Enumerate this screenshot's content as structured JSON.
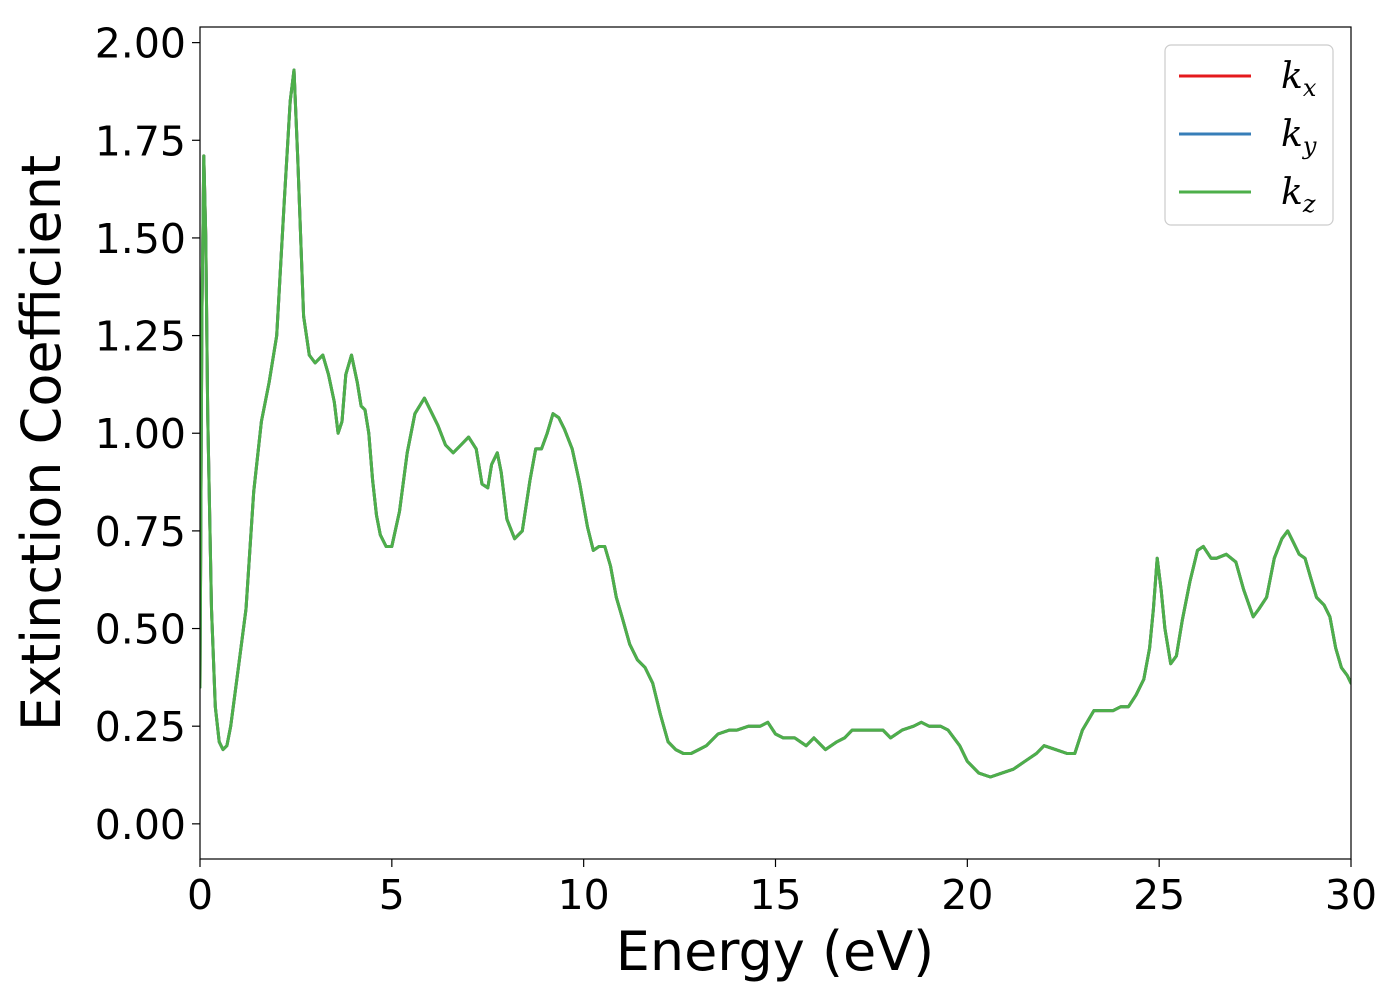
{
  "chart_data": {
    "type": "line",
    "xlabel": "Energy (eV)",
    "ylabel": "Extinction Coefficient",
    "xlim": [
      0,
      30
    ],
    "ylim": [
      -0.09,
      2.04
    ],
    "xticks": [
      0,
      5,
      10,
      15,
      20,
      25,
      30
    ],
    "xtick_labels": [
      "0",
      "5",
      "10",
      "15",
      "20",
      "25",
      "30"
    ],
    "yticks": [
      0,
      0.25,
      0.5,
      0.75,
      1.0,
      1.25,
      1.5,
      1.75,
      2.0
    ],
    "ytick_labels": [
      "0.00",
      "0.25",
      "0.50",
      "0.75",
      "1.00",
      "1.25",
      "1.50",
      "1.75",
      "2.00"
    ],
    "grid": false,
    "legend_position": "top-right",
    "series": [
      {
        "name": "k_x",
        "label_base": "k",
        "label_sub": "x",
        "color": "#e41a1c",
        "x": [
          0,
          0.05,
          0.1,
          0.15,
          0.2,
          0.3,
          0.4,
          0.5,
          0.6,
          0.7,
          0.8,
          1.0,
          1.2,
          1.4,
          1.6,
          1.8,
          2.0,
          2.2,
          2.35,
          2.45,
          2.55,
          2.7,
          2.85,
          3.0,
          3.2,
          3.35,
          3.5,
          3.6,
          3.7,
          3.8,
          3.95,
          4.1,
          4.2,
          4.3,
          4.4,
          4.5,
          4.6,
          4.7,
          4.85,
          5.0,
          5.2,
          5.4,
          5.6,
          5.85,
          6.0,
          6.2,
          6.4,
          6.6,
          6.8,
          7.0,
          7.2,
          7.35,
          7.5,
          7.6,
          7.75,
          7.85,
          8.0,
          8.2,
          8.4,
          8.6,
          8.75,
          8.9,
          9.05,
          9.2,
          9.35,
          9.5,
          9.7,
          9.9,
          10.1,
          10.25,
          10.4,
          10.55,
          10.7,
          10.85,
          11.0,
          11.2,
          11.4,
          11.6,
          11.8,
          12.0,
          12.2,
          12.4,
          12.6,
          12.8,
          13.0,
          13.2,
          13.5,
          13.8,
          14.0,
          14.3,
          14.6,
          14.8,
          15.0,
          15.2,
          15.5,
          15.8,
          16.0,
          16.3,
          16.6,
          16.8,
          17.0,
          17.3,
          17.6,
          17.8,
          18.0,
          18.3,
          18.6,
          18.8,
          19.0,
          19.3,
          19.5,
          19.8,
          20.0,
          20.3,
          20.6,
          20.9,
          21.2,
          21.5,
          21.8,
          22.0,
          22.3,
          22.6,
          22.8,
          23.0,
          23.3,
          23.6,
          23.8,
          24.0,
          24.2,
          24.4,
          24.6,
          24.75,
          24.85,
          24.95,
          25.05,
          25.15,
          25.3,
          25.45,
          25.6,
          25.8,
          26.0,
          26.15,
          26.35,
          26.5,
          26.75,
          27.0,
          27.2,
          27.45,
          27.6,
          27.8,
          28.0,
          28.2,
          28.35,
          28.5,
          28.65,
          28.8,
          28.95,
          29.1,
          29.3,
          29.45,
          29.6,
          29.75,
          29.9,
          30.0
        ],
        "y": [
          0.35,
          1.3,
          1.71,
          1.5,
          1.05,
          0.55,
          0.3,
          0.21,
          0.19,
          0.2,
          0.25,
          0.4,
          0.55,
          0.85,
          1.03,
          1.13,
          1.25,
          1.6,
          1.85,
          1.93,
          1.7,
          1.3,
          1.2,
          1.18,
          1.2,
          1.15,
          1.08,
          1.0,
          1.03,
          1.15,
          1.2,
          1.13,
          1.07,
          1.06,
          1.0,
          0.88,
          0.79,
          0.74,
          0.71,
          0.71,
          0.8,
          0.95,
          1.05,
          1.09,
          1.06,
          1.02,
          0.97,
          0.95,
          0.97,
          0.99,
          0.96,
          0.87,
          0.86,
          0.92,
          0.95,
          0.9,
          0.78,
          0.73,
          0.75,
          0.88,
          0.96,
          0.96,
          1.0,
          1.05,
          1.04,
          1.01,
          0.96,
          0.87,
          0.76,
          0.7,
          0.71,
          0.71,
          0.66,
          0.58,
          0.53,
          0.46,
          0.42,
          0.4,
          0.36,
          0.28,
          0.21,
          0.19,
          0.18,
          0.18,
          0.19,
          0.2,
          0.23,
          0.24,
          0.24,
          0.25,
          0.25,
          0.26,
          0.23,
          0.22,
          0.22,
          0.2,
          0.22,
          0.19,
          0.21,
          0.22,
          0.24,
          0.24,
          0.24,
          0.24,
          0.22,
          0.24,
          0.25,
          0.26,
          0.25,
          0.25,
          0.24,
          0.2,
          0.16,
          0.13,
          0.12,
          0.13,
          0.14,
          0.16,
          0.18,
          0.2,
          0.19,
          0.18,
          0.18,
          0.24,
          0.29,
          0.29,
          0.29,
          0.3,
          0.3,
          0.33,
          0.37,
          0.45,
          0.55,
          0.68,
          0.6,
          0.5,
          0.41,
          0.43,
          0.52,
          0.62,
          0.7,
          0.71,
          0.68,
          0.68,
          0.69,
          0.67,
          0.6,
          0.53,
          0.55,
          0.58,
          0.68,
          0.73,
          0.75,
          0.72,
          0.69,
          0.68,
          0.63,
          0.58,
          0.56,
          0.53,
          0.45,
          0.4,
          0.38,
          0.36
        ]
      },
      {
        "name": "k_y",
        "label_base": "k",
        "label_sub": "y",
        "color": "#377eb8",
        "x": [
          0,
          0.05,
          0.1,
          0.15,
          0.2,
          0.3,
          0.4,
          0.5,
          0.6,
          0.7,
          0.8,
          1.0,
          1.2,
          1.4,
          1.6,
          1.8,
          2.0,
          2.2,
          2.35,
          2.45,
          2.55,
          2.7,
          2.85,
          3.0,
          3.2,
          3.35,
          3.5,
          3.6,
          3.7,
          3.8,
          3.95,
          4.1,
          4.2,
          4.3,
          4.4,
          4.5,
          4.6,
          4.7,
          4.85,
          5.0,
          5.2,
          5.4,
          5.6,
          5.85,
          6.0,
          6.2,
          6.4,
          6.6,
          6.8,
          7.0,
          7.2,
          7.35,
          7.5,
          7.6,
          7.75,
          7.85,
          8.0,
          8.2,
          8.4,
          8.6,
          8.75,
          8.9,
          9.05,
          9.2,
          9.35,
          9.5,
          9.7,
          9.9,
          10.1,
          10.25,
          10.4,
          10.55,
          10.7,
          10.85,
          11.0,
          11.2,
          11.4,
          11.6,
          11.8,
          12.0,
          12.2,
          12.4,
          12.6,
          12.8,
          13.0,
          13.2,
          13.5,
          13.8,
          14.0,
          14.3,
          14.6,
          14.8,
          15.0,
          15.2,
          15.5,
          15.8,
          16.0,
          16.3,
          16.6,
          16.8,
          17.0,
          17.3,
          17.6,
          17.8,
          18.0,
          18.3,
          18.6,
          18.8,
          19.0,
          19.3,
          19.5,
          19.8,
          20.0,
          20.3,
          20.6,
          20.9,
          21.2,
          21.5,
          21.8,
          22.0,
          22.3,
          22.6,
          22.8,
          23.0,
          23.3,
          23.6,
          23.8,
          24.0,
          24.2,
          24.4,
          24.6,
          24.75,
          24.85,
          24.95,
          25.05,
          25.15,
          25.3,
          25.45,
          25.6,
          25.8,
          26.0,
          26.15,
          26.35,
          26.5,
          26.75,
          27.0,
          27.2,
          27.45,
          27.6,
          27.8,
          28.0,
          28.2,
          28.35,
          28.5,
          28.65,
          28.8,
          28.95,
          29.1,
          29.3,
          29.45,
          29.6,
          29.75,
          29.9,
          30.0
        ],
        "y": [
          0.35,
          1.3,
          1.71,
          1.5,
          1.05,
          0.55,
          0.3,
          0.21,
          0.19,
          0.2,
          0.25,
          0.4,
          0.55,
          0.85,
          1.03,
          1.13,
          1.25,
          1.6,
          1.85,
          1.93,
          1.7,
          1.3,
          1.2,
          1.18,
          1.2,
          1.15,
          1.08,
          1.0,
          1.03,
          1.15,
          1.2,
          1.13,
          1.07,
          1.06,
          1.0,
          0.88,
          0.79,
          0.74,
          0.71,
          0.71,
          0.8,
          0.95,
          1.05,
          1.09,
          1.06,
          1.02,
          0.97,
          0.95,
          0.97,
          0.99,
          0.96,
          0.87,
          0.86,
          0.92,
          0.95,
          0.9,
          0.78,
          0.73,
          0.75,
          0.88,
          0.96,
          0.96,
          1.0,
          1.05,
          1.04,
          1.01,
          0.96,
          0.87,
          0.76,
          0.7,
          0.71,
          0.71,
          0.66,
          0.58,
          0.53,
          0.46,
          0.42,
          0.4,
          0.36,
          0.28,
          0.21,
          0.19,
          0.18,
          0.18,
          0.19,
          0.2,
          0.23,
          0.24,
          0.24,
          0.25,
          0.25,
          0.26,
          0.23,
          0.22,
          0.22,
          0.2,
          0.22,
          0.19,
          0.21,
          0.22,
          0.24,
          0.24,
          0.24,
          0.24,
          0.22,
          0.24,
          0.25,
          0.26,
          0.25,
          0.25,
          0.24,
          0.2,
          0.16,
          0.13,
          0.12,
          0.13,
          0.14,
          0.16,
          0.18,
          0.2,
          0.19,
          0.18,
          0.18,
          0.24,
          0.29,
          0.29,
          0.29,
          0.3,
          0.3,
          0.33,
          0.37,
          0.45,
          0.55,
          0.68,
          0.6,
          0.5,
          0.41,
          0.43,
          0.52,
          0.62,
          0.7,
          0.71,
          0.68,
          0.68,
          0.69,
          0.67,
          0.6,
          0.53,
          0.55,
          0.58,
          0.68,
          0.73,
          0.75,
          0.72,
          0.69,
          0.68,
          0.63,
          0.58,
          0.56,
          0.53,
          0.45,
          0.4,
          0.38,
          0.36
        ]
      },
      {
        "name": "k_z",
        "label_base": "k",
        "label_sub": "z",
        "color": "#4daf4a",
        "x": [
          0,
          0.05,
          0.1,
          0.15,
          0.2,
          0.3,
          0.4,
          0.5,
          0.6,
          0.7,
          0.8,
          1.0,
          1.2,
          1.4,
          1.6,
          1.8,
          2.0,
          2.2,
          2.35,
          2.45,
          2.55,
          2.7,
          2.85,
          3.0,
          3.2,
          3.35,
          3.5,
          3.6,
          3.7,
          3.8,
          3.95,
          4.1,
          4.2,
          4.3,
          4.4,
          4.5,
          4.6,
          4.7,
          4.85,
          5.0,
          5.2,
          5.4,
          5.6,
          5.85,
          6.0,
          6.2,
          6.4,
          6.6,
          6.8,
          7.0,
          7.2,
          7.35,
          7.5,
          7.6,
          7.75,
          7.85,
          8.0,
          8.2,
          8.4,
          8.6,
          8.75,
          8.9,
          9.05,
          9.2,
          9.35,
          9.5,
          9.7,
          9.9,
          10.1,
          10.25,
          10.4,
          10.55,
          10.7,
          10.85,
          11.0,
          11.2,
          11.4,
          11.6,
          11.8,
          12.0,
          12.2,
          12.4,
          12.6,
          12.8,
          13.0,
          13.2,
          13.5,
          13.8,
          14.0,
          14.3,
          14.6,
          14.8,
          15.0,
          15.2,
          15.5,
          15.8,
          16.0,
          16.3,
          16.6,
          16.8,
          17.0,
          17.3,
          17.6,
          17.8,
          18.0,
          18.3,
          18.6,
          18.8,
          19.0,
          19.3,
          19.5,
          19.8,
          20.0,
          20.3,
          20.6,
          20.9,
          21.2,
          21.5,
          21.8,
          22.0,
          22.3,
          22.6,
          22.8,
          23.0,
          23.3,
          23.6,
          23.8,
          24.0,
          24.2,
          24.4,
          24.6,
          24.75,
          24.85,
          24.95,
          25.05,
          25.15,
          25.3,
          25.45,
          25.6,
          25.8,
          26.0,
          26.15,
          26.35,
          26.5,
          26.75,
          27.0,
          27.2,
          27.45,
          27.6,
          27.8,
          28.0,
          28.2,
          28.35,
          28.5,
          28.65,
          28.8,
          28.95,
          29.1,
          29.3,
          29.45,
          29.6,
          29.75,
          29.9,
          30.0
        ],
        "y": [
          0.35,
          1.3,
          1.71,
          1.5,
          1.05,
          0.55,
          0.3,
          0.21,
          0.19,
          0.2,
          0.25,
          0.4,
          0.55,
          0.85,
          1.03,
          1.13,
          1.25,
          1.6,
          1.85,
          1.93,
          1.7,
          1.3,
          1.2,
          1.18,
          1.2,
          1.15,
          1.08,
          1.0,
          1.03,
          1.15,
          1.2,
          1.13,
          1.07,
          1.06,
          1.0,
          0.88,
          0.79,
          0.74,
          0.71,
          0.71,
          0.8,
          0.95,
          1.05,
          1.09,
          1.06,
          1.02,
          0.97,
          0.95,
          0.97,
          0.99,
          0.96,
          0.87,
          0.86,
          0.92,
          0.95,
          0.9,
          0.78,
          0.73,
          0.75,
          0.88,
          0.96,
          0.96,
          1.0,
          1.05,
          1.04,
          1.01,
          0.96,
          0.87,
          0.76,
          0.7,
          0.71,
          0.71,
          0.66,
          0.58,
          0.53,
          0.46,
          0.42,
          0.4,
          0.36,
          0.28,
          0.21,
          0.19,
          0.18,
          0.18,
          0.19,
          0.2,
          0.23,
          0.24,
          0.24,
          0.25,
          0.25,
          0.26,
          0.23,
          0.22,
          0.22,
          0.2,
          0.22,
          0.19,
          0.21,
          0.22,
          0.24,
          0.24,
          0.24,
          0.24,
          0.22,
          0.24,
          0.25,
          0.26,
          0.25,
          0.25,
          0.24,
          0.2,
          0.16,
          0.13,
          0.12,
          0.13,
          0.14,
          0.16,
          0.18,
          0.2,
          0.19,
          0.18,
          0.18,
          0.24,
          0.29,
          0.29,
          0.29,
          0.3,
          0.3,
          0.33,
          0.37,
          0.45,
          0.55,
          0.68,
          0.6,
          0.5,
          0.41,
          0.43,
          0.52,
          0.62,
          0.7,
          0.71,
          0.68,
          0.68,
          0.69,
          0.67,
          0.6,
          0.53,
          0.55,
          0.58,
          0.68,
          0.73,
          0.75,
          0.72,
          0.69,
          0.68,
          0.63,
          0.58,
          0.56,
          0.53,
          0.45,
          0.4,
          0.38,
          0.36
        ]
      }
    ]
  }
}
